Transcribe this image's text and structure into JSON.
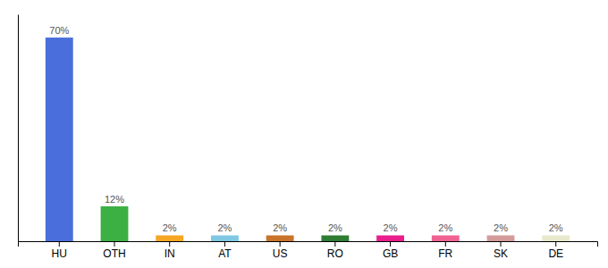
{
  "chart_data": {
    "type": "bar",
    "categories": [
      "HU",
      "OTH",
      "IN",
      "AT",
      "US",
      "RO",
      "GB",
      "FR",
      "SK",
      "DE"
    ],
    "values": [
      70,
      12,
      2,
      2,
      2,
      2,
      2,
      2,
      2,
      2
    ],
    "value_labels": [
      "70%",
      "12%",
      "2%",
      "2%",
      "2%",
      "2%",
      "2%",
      "2%",
      "2%",
      "2%"
    ],
    "colors": [
      "#4a6fdc",
      "#3cb043",
      "#f5a623",
      "#7ec8e3",
      "#c8742a",
      "#2e7d32",
      "#e91e8c",
      "#f06292",
      "#d49b9b",
      "#e8e8cc"
    ],
    "ylim": [
      0,
      78
    ],
    "data_labels": true,
    "tick_labels": "x"
  }
}
